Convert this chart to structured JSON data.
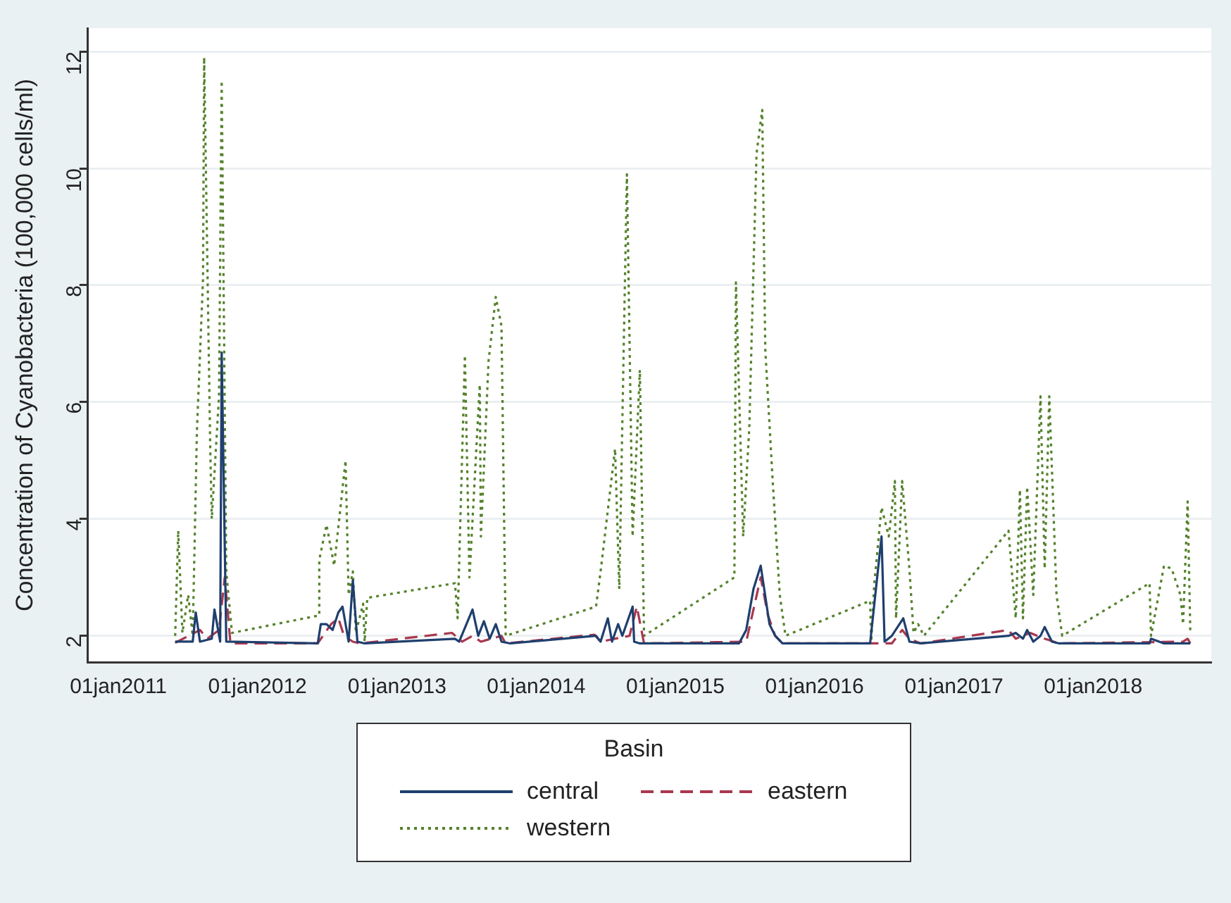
{
  "chart_data": {
    "type": "line",
    "ylabel": "Concentration of Cyanobacteria (100,000 cells/ml)",
    "legend_title": "Basin",
    "legend": "bottom",
    "grid": "y",
    "marker": "none",
    "xlim": [
      "2010-10-13",
      "2018-11-07"
    ],
    "ylim": [
      1.55,
      12.4
    ],
    "yticks": [
      2,
      4,
      6,
      8,
      10,
      12
    ],
    "xticks": [
      {
        "value": "2011-01-01",
        "label": "01jan2011"
      },
      {
        "value": "2012-01-01",
        "label": "01jan2012"
      },
      {
        "value": "2013-01-01",
        "label": "01jan2013"
      },
      {
        "value": "2014-01-01",
        "label": "01jan2014"
      },
      {
        "value": "2015-01-01",
        "label": "01jan2015"
      },
      {
        "value": "2016-01-01",
        "label": "01jan2016"
      },
      {
        "value": "2017-01-01",
        "label": "01jan2017"
      },
      {
        "value": "2018-01-01",
        "label": "01jan2018"
      }
    ],
    "series": [
      {
        "name": "central",
        "color": "#1f3f6e",
        "line_style": "solid",
        "x": [
          "2011-05-30",
          "2011-07-15",
          "2011-07-23",
          "2011-08-03",
          "2011-09-03",
          "2011-09-10",
          "2011-09-25",
          "2011-09-29",
          "2011-10-11",
          "2012-06-07",
          "2012-06-15",
          "2012-06-30",
          "2012-07-16",
          "2012-07-31",
          "2012-08-11",
          "2012-08-27",
          "2012-09-07",
          "2012-09-19",
          "2012-10-08",
          "2013-06-02",
          "2013-06-13",
          "2013-07-18",
          "2013-08-02",
          "2013-08-17",
          "2013-09-01",
          "2013-09-17",
          "2013-10-02",
          "2013-10-25",
          "2014-06-07",
          "2014-06-19",
          "2014-07-08",
          "2014-07-19",
          "2014-08-04",
          "2014-08-15",
          "2014-09-11",
          "2014-09-15",
          "2014-09-30",
          "2015-06-17",
          "2015-07-06",
          "2015-07-25",
          "2015-08-13",
          "2015-09-05",
          "2015-09-20",
          "2015-10-09",
          "2016-05-26",
          "2016-06-25",
          "2016-07-03",
          "2016-07-22",
          "2016-08-21",
          "2016-09-06",
          "2016-10-06",
          "2017-05-24",
          "2017-06-12",
          "2017-07-01",
          "2017-07-12",
          "2017-07-28",
          "2017-08-16",
          "2017-08-27",
          "2017-09-15",
          "2017-10-04",
          "2018-05-29",
          "2018-06-02",
          "2018-07-06",
          "2018-09-13"
        ],
        "values": [
          1.9,
          1.9,
          2.4,
          1.9,
          1.95,
          2.45,
          1.9,
          6.85,
          1.9,
          1.87,
          2.2,
          2.2,
          2.1,
          2.4,
          2.5,
          1.9,
          2.95,
          1.9,
          1.87,
          1.95,
          1.9,
          2.45,
          2.0,
          2.25,
          1.95,
          2.2,
          1.9,
          1.87,
          2.0,
          1.9,
          2.3,
          1.9,
          2.2,
          2.0,
          2.5,
          1.9,
          1.87,
          1.87,
          2.1,
          2.8,
          3.2,
          2.2,
          2.0,
          1.87,
          1.87,
          3.7,
          1.9,
          2.0,
          2.3,
          1.9,
          1.87,
          2.0,
          2.05,
          1.95,
          2.1,
          1.9,
          2.0,
          2.15,
          1.9,
          1.87,
          1.87,
          1.95,
          1.87,
          1.87
        ]
      },
      {
        "name": "eastern",
        "color": "#a8384f",
        "line_style": "dashed",
        "x": [
          "2011-05-30",
          "2011-08-03",
          "2011-08-22",
          "2011-09-22",
          "2011-10-07",
          "2011-10-22",
          "2012-06-07",
          "2012-07-12",
          "2012-07-31",
          "2012-08-15",
          "2012-09-07",
          "2012-09-26",
          "2013-05-25",
          "2013-06-21",
          "2013-07-18",
          "2013-08-09",
          "2013-10-02",
          "2013-10-13",
          "2014-06-03",
          "2014-06-19",
          "2014-09-03",
          "2014-09-22",
          "2014-10-11",
          "2015-07-06",
          "2015-08-13",
          "2015-09-01",
          "2015-09-20",
          "2015-10-09",
          "2016-07-22",
          "2016-08-18",
          "2016-09-06",
          "2016-10-06",
          "2017-05-24",
          "2017-06-12",
          "2017-07-20",
          "2017-08-27",
          "2017-10-04",
          "2018-08-25",
          "2018-09-06",
          "2018-09-13"
        ],
        "values": [
          1.88,
          2.1,
          1.95,
          2.1,
          3.0,
          1.87,
          1.87,
          2.2,
          2.3,
          2.0,
          1.9,
          1.87,
          2.05,
          1.9,
          2.0,
          1.9,
          2.0,
          1.87,
          2.02,
          1.9,
          2.0,
          2.5,
          1.87,
          1.9,
          3.0,
          2.35,
          2.0,
          1.87,
          1.87,
          2.1,
          1.95,
          1.87,
          2.1,
          1.95,
          2.05,
          1.95,
          1.87,
          1.9,
          1.95,
          1.87
        ]
      },
      {
        "name": "western",
        "color": "#55822d",
        "line_style": "dotted",
        "x": [
          "2011-05-30",
          "2011-06-07",
          "2011-06-18",
          "2011-07-03",
          "2011-07-15",
          "2011-07-26",
          "2011-08-11",
          "2011-08-14",
          "2011-08-30",
          "2011-09-03",
          "2011-09-22",
          "2011-09-29",
          "2011-10-11",
          "2011-10-26",
          "2012-06-11",
          "2012-06-11",
          "2012-06-30",
          "2012-07-20",
          "2012-08-19",
          "2012-08-27",
          "2012-09-07",
          "2012-09-15",
          "2012-10-04",
          "2012-10-08",
          "2012-10-15",
          "2013-06-02",
          "2013-06-09",
          "2013-06-28",
          "2013-07-10",
          "2013-08-06",
          "2013-08-09",
          "2013-08-29",
          "2013-09-17",
          "2013-10-02",
          "2013-10-13",
          "2014-06-07",
          "2014-06-19",
          "2014-07-27",
          "2014-08-07",
          "2014-08-27",
          "2014-09-11",
          "2014-09-30",
          "2014-10-11",
          "2015-06-05",
          "2015-06-09",
          "2015-06-28",
          "2015-07-14",
          "2015-08-02",
          "2015-08-17",
          "2015-08-25",
          "2015-09-13",
          "2015-10-02",
          "2015-10-17",
          "2016-05-26",
          "2016-05-29",
          "2016-06-06",
          "2016-06-25",
          "2016-07-14",
          "2016-07-30",
          "2016-08-02",
          "2016-08-18",
          "2016-09-06",
          "2016-09-17",
          "2016-09-29",
          "2016-10-14",
          "2017-05-24",
          "2017-06-12",
          "2017-06-23",
          "2017-07-01",
          "2017-07-12",
          "2017-07-28",
          "2017-08-16",
          "2017-08-27",
          "2017-09-08",
          "2017-09-27",
          "2017-10-12",
          "2018-05-29",
          "2018-06-02",
          "2018-07-06",
          "2018-07-26",
          "2018-08-18",
          "2018-08-25",
          "2018-09-06",
          "2018-09-13"
        ],
        "values": [
          2.0,
          3.8,
          2.05,
          2.7,
          2.0,
          5.5,
          8.1,
          11.9,
          5.2,
          4.0,
          6.1,
          11.5,
          3.1,
          2.05,
          2.35,
          3.3,
          3.9,
          3.2,
          5.0,
          2.7,
          3.1,
          2.05,
          2.55,
          1.9,
          2.65,
          2.9,
          2.3,
          6.8,
          3.0,
          6.3,
          3.7,
          6.7,
          7.8,
          7.3,
          2.0,
          2.5,
          3.1,
          5.2,
          2.8,
          9.9,
          3.7,
          6.55,
          2.0,
          3.0,
          8.05,
          3.7,
          5.55,
          10.25,
          11.0,
          6.9,
          4.7,
          2.7,
          2.0,
          2.6,
          1.9,
          2.9,
          4.2,
          3.7,
          4.65,
          2.3,
          4.65,
          3.15,
          2.05,
          2.2,
          2.0,
          3.8,
          2.3,
          4.5,
          2.3,
          4.55,
          2.7,
          6.1,
          3.15,
          6.1,
          2.7,
          2.0,
          2.9,
          2.0,
          3.2,
          3.15,
          2.7,
          2.2,
          4.3,
          2.05
        ]
      }
    ]
  }
}
